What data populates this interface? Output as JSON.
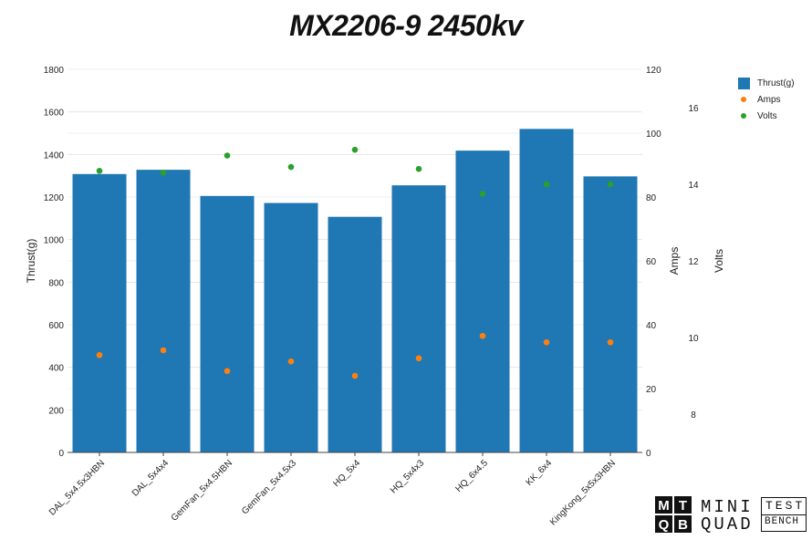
{
  "chart_data": {
    "type": "bar",
    "title": "MX2206-9 2450kv",
    "categories": [
      "DAL_5x4.5x3HBN",
      "DAL_5x4x4",
      "GemFan_5x4.5HBN",
      "GemFan_5x4.5x3",
      "HQ_5x4",
      "HQ_5x4x3",
      "HQ_6x4.5",
      "KK_6x4",
      "KingKong_5x5x3HBN"
    ],
    "y_left": {
      "label": "Thrust(g)",
      "range": [
        0,
        1800
      ],
      "ticks": [
        0,
        200,
        400,
        600,
        800,
        1000,
        1200,
        1400,
        1600,
        1800
      ]
    },
    "y_right1": {
      "label": "Amps",
      "range": [
        0,
        120
      ],
      "ticks": [
        0,
        20,
        40,
        60,
        80,
        100,
        120
      ]
    },
    "y_right2": {
      "label": "Volts",
      "range": [
        7,
        17
      ],
      "ticks": [
        8,
        10,
        12,
        14,
        16
      ]
    },
    "series": [
      {
        "name": "Thrust(g)",
        "type": "bar",
        "axis": "left",
        "color": "#1f77b4",
        "values": [
          1308,
          1328,
          1205,
          1172,
          1107,
          1255,
          1418,
          1520,
          1297
        ]
      },
      {
        "name": "Amps",
        "type": "scatter",
        "axis": "right1",
        "color": "#ff7f0e",
        "values": [
          30.5,
          32,
          25.5,
          28.5,
          24,
          29.5,
          36.5,
          34.5,
          34.5
        ]
      },
      {
        "name": "Volts",
        "type": "scatter",
        "axis": "right2",
        "color": "#2ca02c",
        "values": [
          14.35,
          14.3,
          14.75,
          14.45,
          14.9,
          14.4,
          13.75,
          14.0,
          14.0
        ]
      }
    ],
    "legend": "top-right",
    "grid": true
  },
  "logo": {
    "mark_letters": [
      "M",
      "T",
      "Q",
      "B"
    ],
    "line1": "MINI",
    "line2": "QUAD",
    "box_line1": "TEST",
    "box_line2": "BENCH"
  }
}
